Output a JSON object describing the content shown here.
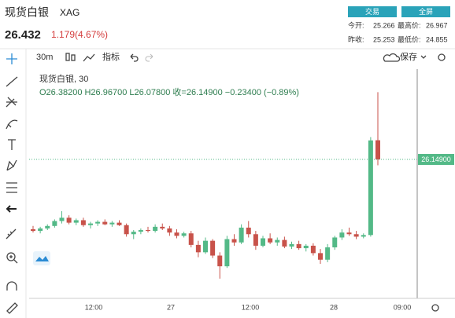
{
  "header": {
    "name": "现货白银",
    "code": "XAG",
    "buttons": [
      "交易",
      "全屏"
    ],
    "price": "26.432",
    "change": "1.179(4.67%)",
    "stats": [
      {
        "label": "今开:",
        "value": "25.266"
      },
      {
        "label": "最高价:",
        "value": "26.967"
      },
      {
        "label": "昨收:",
        "value": "25.253"
      },
      {
        "label": "最低价:",
        "value": "24.855"
      }
    ]
  },
  "toolbar": {
    "interval": "30m",
    "indicators": "指标",
    "save": "保存"
  },
  "chart": {
    "legend_title": "现货白银, 30",
    "legend_ohlc": "O26.38200 H26.96700 L26.07800 收=26.14900 −0.23400 (−0.89%)",
    "up_color": "#53b987",
    "down_color": "#c8524a",
    "ylim": [
      24.46,
      27.18
    ],
    "last_price_label": "26.14900",
    "time_labels": [
      "12:00",
      "27",
      "12:00",
      "28",
      "09:00"
    ],
    "candles": [
      [
        25.3,
        25.34,
        25.26,
        25.28
      ],
      [
        25.28,
        25.33,
        25.25,
        25.31
      ],
      [
        25.31,
        25.36,
        25.29,
        25.34
      ],
      [
        25.34,
        25.42,
        25.32,
        25.4
      ],
      [
        25.4,
        25.52,
        25.37,
        25.44
      ],
      [
        25.44,
        25.47,
        25.36,
        25.38
      ],
      [
        25.38,
        25.43,
        25.35,
        25.41
      ],
      [
        25.41,
        25.44,
        25.33,
        25.35
      ],
      [
        25.35,
        25.39,
        25.31,
        25.37
      ],
      [
        25.37,
        25.41,
        25.34,
        25.39
      ],
      [
        25.39,
        25.42,
        25.35,
        25.36
      ],
      [
        25.36,
        25.4,
        25.33,
        25.38
      ],
      [
        25.38,
        25.41,
        25.34,
        25.35
      ],
      [
        25.35,
        25.37,
        25.21,
        25.24
      ],
      [
        25.24,
        25.29,
        25.18,
        25.27
      ],
      [
        25.27,
        25.31,
        25.24,
        25.29
      ],
      [
        25.29,
        25.33,
        25.26,
        25.28
      ],
      [
        25.28,
        25.36,
        25.26,
        25.33
      ],
      [
        25.33,
        25.37,
        25.29,
        25.31
      ],
      [
        25.31,
        25.34,
        25.22,
        25.26
      ],
      [
        25.26,
        25.3,
        25.19,
        25.22
      ],
      [
        25.22,
        25.27,
        25.2,
        25.25
      ],
      [
        25.25,
        25.28,
        25.08,
        25.11
      ],
      [
        25.11,
        25.16,
        24.96,
        25.02
      ],
      [
        25.02,
        25.2,
        25.0,
        25.16
      ],
      [
        25.16,
        25.18,
        24.95,
        24.98
      ],
      [
        24.98,
        25.02,
        24.7,
        24.85
      ],
      [
        24.85,
        25.22,
        24.83,
        25.18
      ],
      [
        25.18,
        25.24,
        25.1,
        25.14
      ],
      [
        25.14,
        25.36,
        25.12,
        25.32
      ],
      [
        25.32,
        25.4,
        25.2,
        25.24
      ],
      [
        25.24,
        25.28,
        25.05,
        25.1
      ],
      [
        25.1,
        25.22,
        25.08,
        25.19
      ],
      [
        25.19,
        25.25,
        25.12,
        25.14
      ],
      [
        25.14,
        25.2,
        25.1,
        25.17
      ],
      [
        25.17,
        25.21,
        25.07,
        25.09
      ],
      [
        25.09,
        25.15,
        25.06,
        25.12
      ],
      [
        25.12,
        25.16,
        25.05,
        25.07
      ],
      [
        25.07,
        25.12,
        25.03,
        25.1
      ],
      [
        25.1,
        25.13,
        24.98,
        25.01
      ],
      [
        25.01,
        25.06,
        24.88,
        24.93
      ],
      [
        24.93,
        25.12,
        24.9,
        25.08
      ],
      [
        25.08,
        25.22,
        25.05,
        25.2
      ],
      [
        25.2,
        25.3,
        25.17,
        25.26
      ],
      [
        25.26,
        25.32,
        25.22,
        25.24
      ],
      [
        25.24,
        25.28,
        25.18,
        25.21
      ],
      [
        25.21,
        25.25,
        25.19,
        25.23
      ],
      [
        25.23,
        26.42,
        25.21,
        26.38
      ],
      [
        26.382,
        26.967,
        26.078,
        26.149
      ]
    ]
  }
}
